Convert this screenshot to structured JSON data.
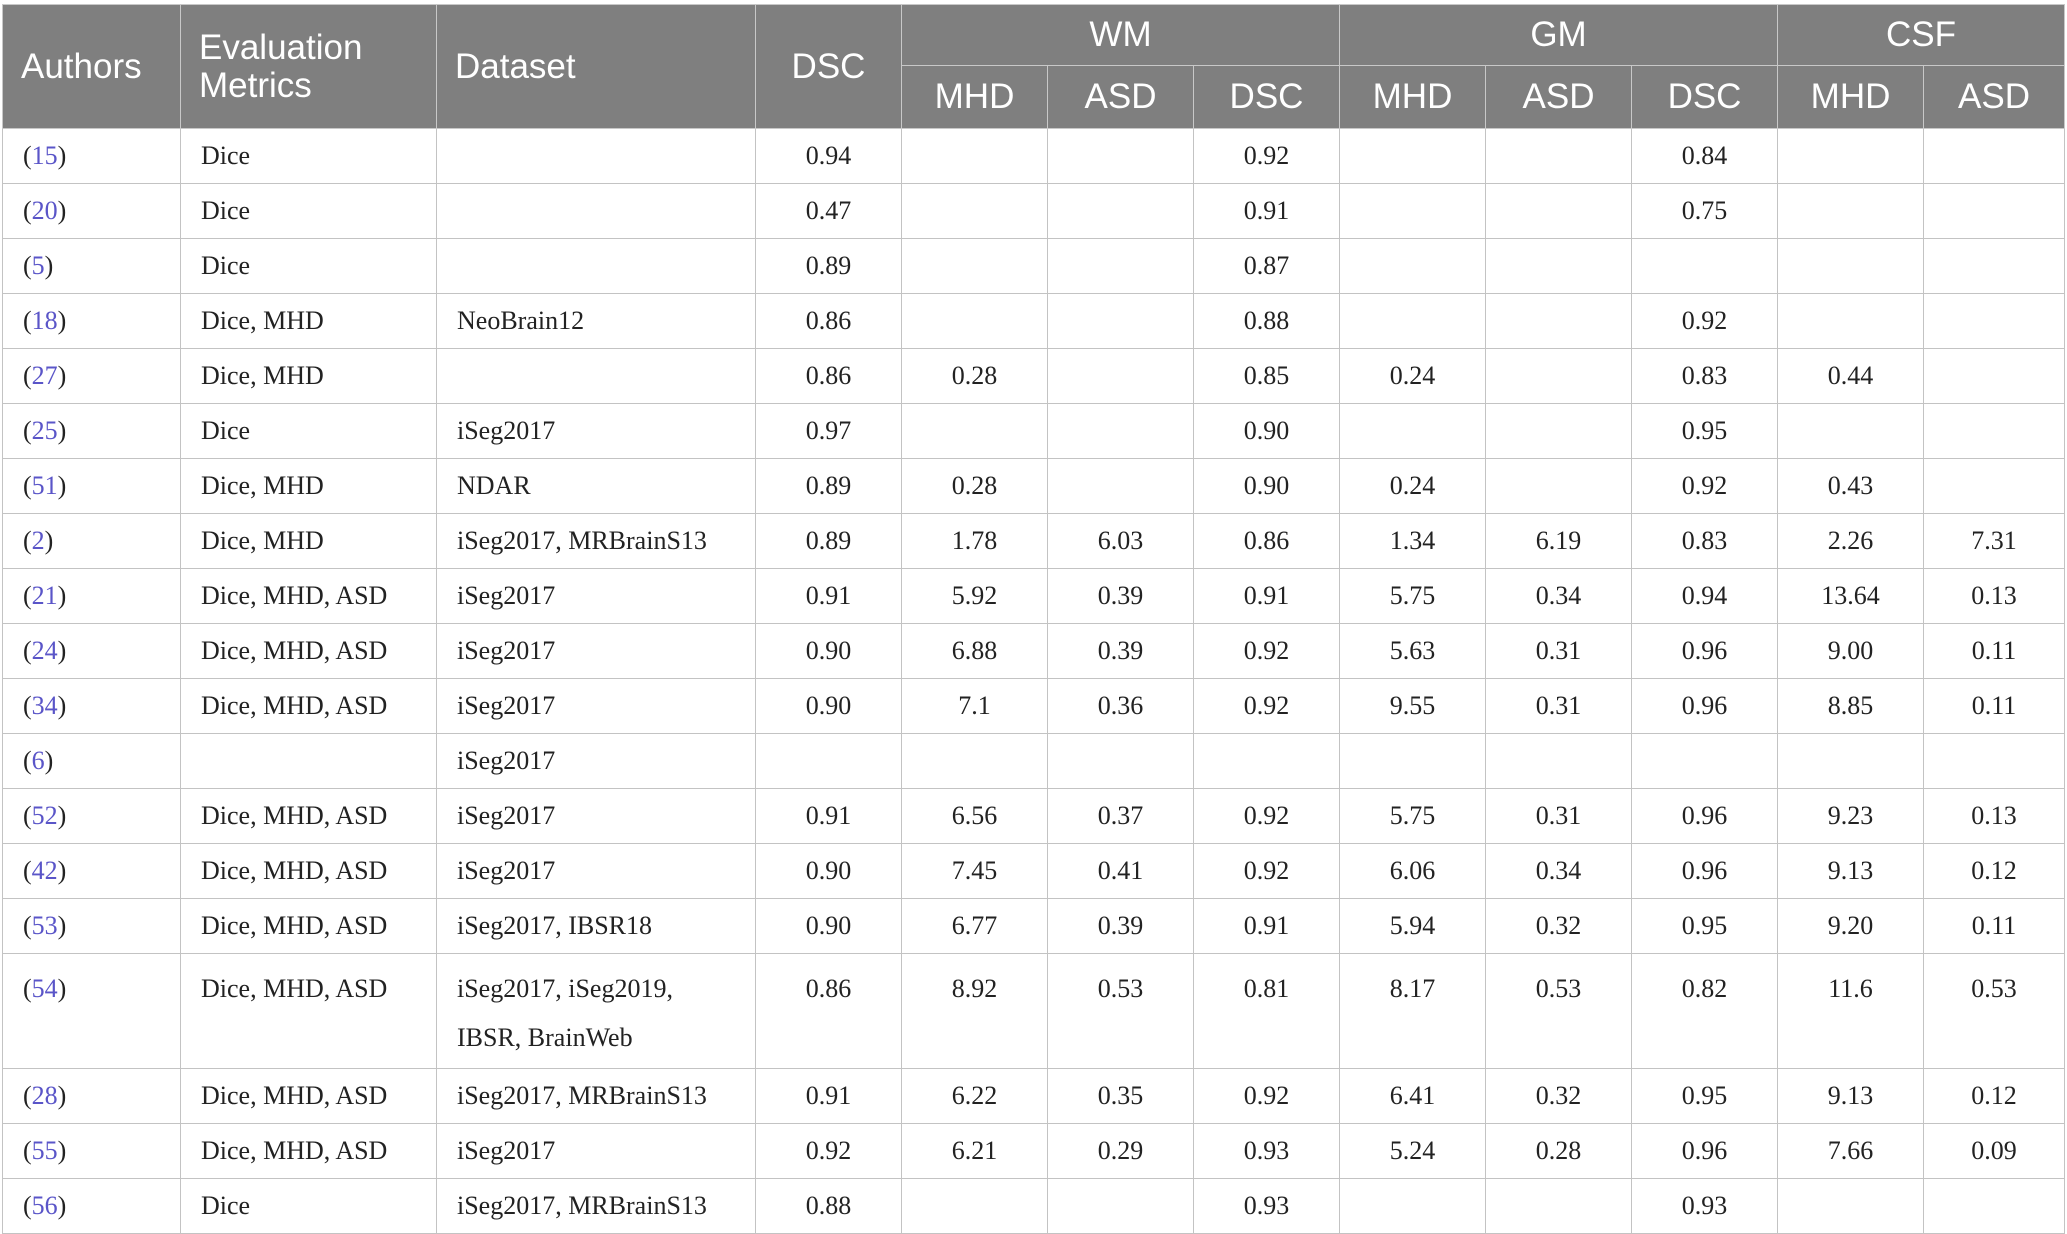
{
  "header": {
    "authors": "Authors",
    "evaluation_metrics_line1": "Evaluation",
    "evaluation_metrics_line2": "Metrics",
    "dataset": "Dataset",
    "dsc": "DSC",
    "groups": [
      "WM",
      "GM",
      "CSF"
    ],
    "sub": [
      "MHD",
      "ASD",
      "DSC",
      "MHD",
      "ASD",
      "DSC",
      "MHD",
      "ASD"
    ]
  },
  "rows": [
    {
      "ref": "15",
      "metrics": "Dice",
      "dataset": "",
      "vals": [
        "0.94",
        "",
        "",
        "0.92",
        "",
        "",
        "0.84",
        "",
        ""
      ]
    },
    {
      "ref": "20",
      "metrics": "Dice",
      "dataset": "",
      "vals": [
        "0.47",
        "",
        "",
        "0.91",
        "",
        "",
        "0.75",
        "",
        ""
      ]
    },
    {
      "ref": "5",
      "metrics": "Dice",
      "dataset": "",
      "vals": [
        "0.89",
        "",
        "",
        "0.87",
        "",
        "",
        "",
        "",
        ""
      ]
    },
    {
      "ref": "18",
      "metrics": "Dice, MHD",
      "dataset": "NeoBrain12",
      "vals": [
        "0.86",
        "",
        "",
        "0.88",
        "",
        "",
        "0.92",
        "",
        ""
      ]
    },
    {
      "ref": "27",
      "metrics": "Dice, MHD",
      "dataset": "",
      "vals": [
        "0.86",
        "0.28",
        "",
        "0.85",
        "0.24",
        "",
        "0.83",
        "0.44",
        ""
      ]
    },
    {
      "ref": "25",
      "metrics": "Dice",
      "dataset": "iSeg2017",
      "vals": [
        "0.97",
        "",
        "",
        "0.90",
        "",
        "",
        "0.95",
        "",
        ""
      ]
    },
    {
      "ref": "51",
      "metrics": "Dice, MHD",
      "dataset": "NDAR",
      "vals": [
        "0.89",
        "0.28",
        "",
        "0.90",
        "0.24",
        "",
        "0.92",
        "0.43",
        ""
      ]
    },
    {
      "ref": "2",
      "metrics": "Dice, MHD",
      "dataset": "iSeg2017, MRBrainS13",
      "vals": [
        "0.89",
        "1.78",
        "6.03",
        "0.86",
        "1.34",
        "6.19",
        "0.83",
        "2.26",
        "7.31"
      ]
    },
    {
      "ref": "21",
      "metrics": "Dice, MHD, ASD",
      "dataset": "iSeg2017",
      "vals": [
        "0.91",
        "5.92",
        "0.39",
        "0.91",
        "5.75",
        "0.34",
        "0.94",
        "13.64",
        "0.13"
      ]
    },
    {
      "ref": "24",
      "metrics": "Dice, MHD, ASD",
      "dataset": "iSeg2017",
      "vals": [
        "0.90",
        "6.88",
        "0.39",
        "0.92",
        "5.63",
        "0.31",
        "0.96",
        "9.00",
        "0.11"
      ]
    },
    {
      "ref": "34",
      "metrics": "Dice, MHD, ASD",
      "dataset": "iSeg2017",
      "vals": [
        "0.90",
        "7.1",
        "0.36",
        "0.92",
        "9.55",
        "0.31",
        "0.96",
        "8.85",
        "0.11"
      ]
    },
    {
      "ref": "6",
      "metrics": "",
      "dataset": "iSeg2017",
      "vals": [
        "",
        "",
        "",
        "",
        "",
        "",
        "",
        "",
        ""
      ]
    },
    {
      "ref": "52",
      "metrics": "Dice, MHD, ASD",
      "dataset": "iSeg2017",
      "vals": [
        "0.91",
        "6.56",
        "0.37",
        "0.92",
        "5.75",
        "0.31",
        "0.96",
        "9.23",
        "0.13"
      ]
    },
    {
      "ref": "42",
      "metrics": "Dice, MHD, ASD",
      "dataset": "iSeg2017",
      "vals": [
        "0.90",
        "7.45",
        "0.41",
        "0.92",
        "6.06",
        "0.34",
        "0.96",
        "9.13",
        "0.12"
      ]
    },
    {
      "ref": "53",
      "metrics": "Dice, MHD, ASD",
      "dataset": "iSeg2017, IBSR18",
      "vals": [
        "0.90",
        "6.77",
        "0.39",
        "0.91",
        "5.94",
        "0.32",
        "0.95",
        "9.20",
        "0.11"
      ]
    },
    {
      "ref": "54",
      "metrics": "Dice, MHD, ASD",
      "dataset": "iSeg2017, iSeg2019,",
      "dataset2": "IBSR, BrainWeb",
      "vals": [
        "0.86",
        "8.92",
        "0.53",
        "0.81",
        "8.17",
        "0.53",
        "0.82",
        "11.6",
        "0.53"
      ]
    },
    {
      "ref": "28",
      "metrics": "Dice, MHD, ASD",
      "dataset": "iSeg2017, MRBrainS13",
      "vals": [
        "0.91",
        "6.22",
        "0.35",
        "0.92",
        "6.41",
        "0.32",
        "0.95",
        "9.13",
        "0.12"
      ]
    },
    {
      "ref": "55",
      "metrics": "Dice, MHD, ASD",
      "dataset": "iSeg2017",
      "vals": [
        "0.92",
        "6.21",
        "0.29",
        "0.93",
        "5.24",
        "0.28",
        "0.96",
        "7.66",
        "0.09"
      ]
    },
    {
      "ref": "56",
      "metrics": "Dice",
      "dataset": "iSeg2017, MRBrainS13",
      "vals": [
        "0.88",
        "",
        "",
        "0.93",
        "",
        "",
        "0.93",
        "",
        ""
      ]
    }
  ]
}
